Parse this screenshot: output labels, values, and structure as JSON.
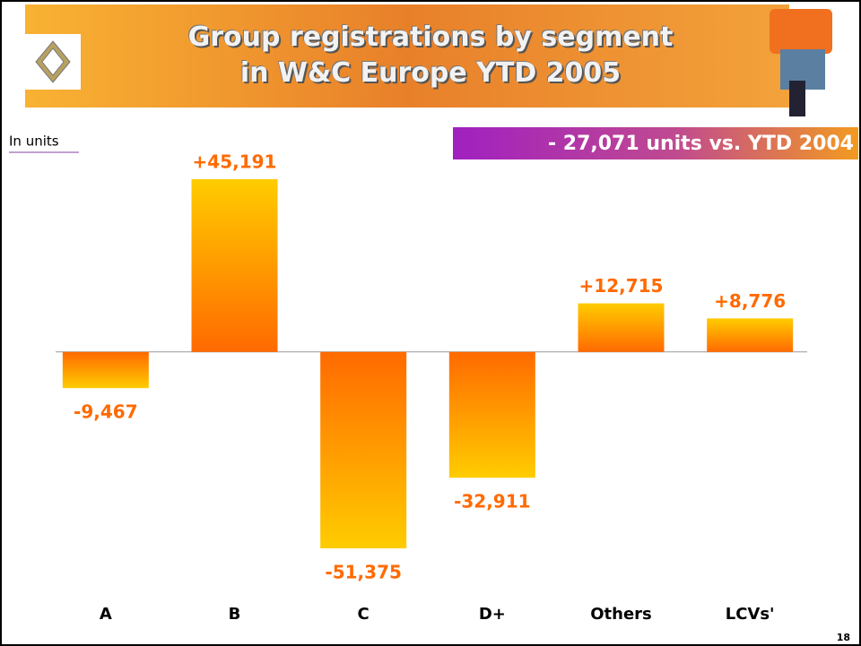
{
  "chart_data": {
    "type": "bar",
    "title": "Group registrations by segment\nin W&C Europe YTD 2005",
    "unit_label": "In units",
    "callout": "- 27,071 units vs. YTD 2004",
    "categories": [
      "A",
      "B",
      "C",
      "D+",
      "Others",
      "LCVs'"
    ],
    "values": [
      -9467,
      45191,
      -51375,
      -32911,
      12715,
      8776
    ],
    "value_labels": [
      "-9,467",
      "+45,191",
      "-51,375",
      "-32,911",
      "+12,715",
      "+8,776"
    ],
    "gradient": [
      "#ffcc00",
      "#ff6a00"
    ]
  },
  "page_number": "18"
}
